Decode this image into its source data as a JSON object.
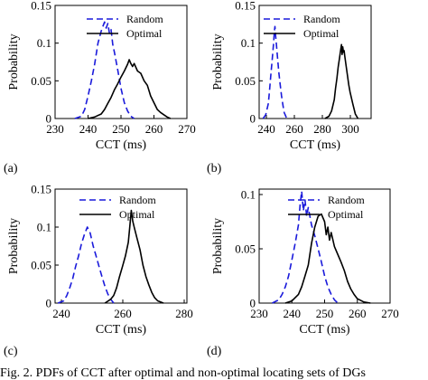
{
  "caption": "Fig. 2.  PDFs of CCT after optimal and non-optimal locating sets of DGs",
  "colors": {
    "random": "#1a1adb",
    "optimal": "#000000"
  },
  "chart_data": [
    {
      "panel": "(a)",
      "type": "line",
      "xlabel": "CCT (ms)",
      "ylabel": "Probability",
      "xlim": [
        230,
        270
      ],
      "ylim": [
        0,
        0.15
      ],
      "xticks": [
        "230",
        "240",
        "250",
        "260",
        "270"
      ],
      "yticks": [
        "0",
        "0.05",
        "0.1",
        "0.15"
      ],
      "legend": "top-right",
      "grid": false,
      "series": [
        {
          "name": "Random",
          "style": "dashed",
          "x": [
            236,
            238,
            239,
            240,
            241,
            242,
            243,
            244,
            244.5,
            245,
            245.5,
            246,
            246.5,
            247,
            247.5,
            248,
            249,
            250,
            251,
            252,
            253,
            254
          ],
          "y": [
            0,
            0.003,
            0.012,
            0.03,
            0.05,
            0.072,
            0.1,
            0.116,
            0.122,
            0.128,
            0.12,
            0.126,
            0.113,
            0.118,
            0.098,
            0.088,
            0.065,
            0.04,
            0.021,
            0.01,
            0.003,
            0
          ]
        },
        {
          "name": "Optimal",
          "style": "solid",
          "x": [
            240,
            242,
            244,
            245,
            246,
            247,
            248,
            249,
            250,
            251,
            252,
            252.5,
            253,
            253.5,
            254,
            255,
            256,
            257,
            258,
            259,
            260,
            261,
            262,
            263,
            264,
            265
          ],
          "y": [
            0,
            0.002,
            0.006,
            0.012,
            0.02,
            0.028,
            0.038,
            0.046,
            0.055,
            0.063,
            0.072,
            0.078,
            0.073,
            0.069,
            0.073,
            0.063,
            0.06,
            0.05,
            0.044,
            0.03,
            0.021,
            0.012,
            0.008,
            0.005,
            0.002,
            0
          ]
        }
      ]
    },
    {
      "panel": "(b)",
      "type": "line",
      "xlabel": "CCT (ms)",
      "ylabel": "Probability",
      "xlim": [
        235,
        320
      ],
      "ylim": [
        0,
        0.15
      ],
      "xticks": [
        "240",
        "260",
        "280",
        "300"
      ],
      "yticks": [
        "0",
        "0.05",
        "0.1",
        "0.15"
      ],
      "legend": "top-right",
      "grid": false,
      "series": [
        {
          "name": "Random",
          "style": "dashed",
          "x": [
            238,
            240,
            242,
            243,
            244,
            245,
            246,
            246.5,
            247,
            247.5,
            248,
            249,
            250,
            251,
            252,
            253,
            254,
            256
          ],
          "y": [
            0,
            0.005,
            0.02,
            0.04,
            0.06,
            0.08,
            0.1,
            0.115,
            0.122,
            0.11,
            0.1,
            0.08,
            0.06,
            0.045,
            0.03,
            0.018,
            0.008,
            0
          ]
        },
        {
          "name": "Optimal",
          "style": "solid",
          "x": [
            285,
            288,
            290,
            292,
            293,
            294,
            295,
            296,
            297,
            297.5,
            298,
            298.5,
            299,
            299.5,
            300,
            301,
            302,
            303,
            304,
            306,
            308,
            310
          ],
          "y": [
            0,
            0.003,
            0.01,
            0.025,
            0.04,
            0.053,
            0.068,
            0.08,
            0.092,
            0.098,
            0.085,
            0.095,
            0.088,
            0.09,
            0.083,
            0.07,
            0.058,
            0.045,
            0.035,
            0.02,
            0.006,
            0
          ]
        }
      ]
    },
    {
      "panel": "(c)",
      "type": "line",
      "xlabel": "CCT (ms)",
      "ylabel": "Probability",
      "xlim": [
        235,
        280
      ],
      "ylim": [
        0,
        0.15
      ],
      "xticks": [
        "240",
        "260",
        "280"
      ],
      "yticks": [
        "0",
        "0.05",
        "0.1",
        "0.15"
      ],
      "legend": "top-right",
      "grid": false,
      "series": [
        {
          "name": "Random",
          "style": "dashed",
          "x": [
            236,
            238,
            239,
            240,
            241,
            242,
            243,
            244,
            245,
            246,
            247,
            248,
            249,
            250,
            251,
            252,
            253,
            254,
            255
          ],
          "y": [
            0,
            0.003,
            0.01,
            0.02,
            0.032,
            0.048,
            0.062,
            0.078,
            0.09,
            0.1,
            0.092,
            0.075,
            0.062,
            0.048,
            0.035,
            0.022,
            0.012,
            0.005,
            0
          ]
        },
        {
          "name": "Optimal",
          "style": "solid",
          "x": [
            252,
            254,
            255,
            256,
            257,
            258,
            259,
            260,
            260.5,
            261,
            261.5,
            262,
            263,
            264,
            265,
            266,
            267,
            268,
            269,
            270,
            272
          ],
          "y": [
            0,
            0.005,
            0.01,
            0.02,
            0.035,
            0.048,
            0.062,
            0.08,
            0.1,
            0.122,
            0.108,
            0.1,
            0.085,
            0.07,
            0.05,
            0.035,
            0.024,
            0.014,
            0.007,
            0.003,
            0
          ]
        }
      ]
    },
    {
      "panel": "(d)",
      "type": "line",
      "xlabel": "CCT (ms)",
      "ylabel": "Probability",
      "xlim": [
        230,
        270
      ],
      "ylim": [
        0,
        0.105
      ],
      "xticks": [
        "230",
        "240",
        "250",
        "260",
        "270"
      ],
      "yticks": [
        "0",
        "0.05",
        "0.1"
      ],
      "legend": "top-right",
      "grid": false,
      "series": [
        {
          "name": "Random",
          "style": "dashed",
          "x": [
            234,
            236,
            237,
            238,
            239,
            240,
            241,
            242,
            242.5,
            243,
            243.5,
            244,
            244.5,
            245,
            246,
            247,
            248,
            249,
            250,
            251,
            252,
            253,
            254
          ],
          "y": [
            0,
            0.003,
            0.008,
            0.015,
            0.025,
            0.04,
            0.055,
            0.072,
            0.09,
            0.103,
            0.085,
            0.095,
            0.08,
            0.088,
            0.072,
            0.062,
            0.05,
            0.038,
            0.025,
            0.015,
            0.008,
            0.003,
            0
          ]
        },
        {
          "name": "Optimal",
          "style": "solid",
          "x": [
            238,
            240,
            242,
            243,
            244,
            245,
            246,
            247,
            248,
            249,
            250,
            250.5,
            251,
            251.5,
            252,
            253,
            254,
            255,
            256,
            257,
            258,
            259,
            260,
            262,
            264
          ],
          "y": [
            0,
            0.002,
            0.008,
            0.015,
            0.025,
            0.035,
            0.055,
            0.07,
            0.08,
            0.082,
            0.075,
            0.063,
            0.07,
            0.058,
            0.065,
            0.052,
            0.045,
            0.038,
            0.03,
            0.02,
            0.013,
            0.008,
            0.004,
            0.001,
            0
          ]
        }
      ]
    }
  ]
}
